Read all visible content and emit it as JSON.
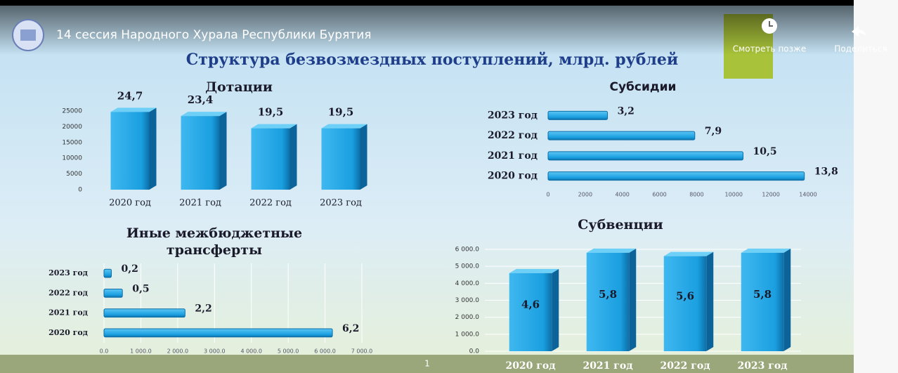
{
  "video": {
    "title": "14 сессия Народного Хурала Республики Бурятия",
    "watch_later": "Смотреть позже",
    "share": "Поделиться"
  },
  "slide": {
    "title": "Структура безвозмездных поступлений, млрд. рублей",
    "page": "1"
  },
  "chart_data": [
    {
      "type": "bar",
      "title": "Дотации",
      "categories": [
        "2020 год",
        "2021 год",
        "2022 год",
        "2023 год"
      ],
      "values": [
        24700,
        23400,
        19500,
        19500
      ],
      "value_labels": [
        "24,7",
        "23,4",
        "19,5",
        "19,5"
      ],
      "ylim": [
        0,
        25000
      ],
      "yticks": [
        0,
        5000,
        10000,
        15000,
        20000,
        25000
      ],
      "color": "#1ea5e6"
    },
    {
      "type": "barh",
      "title": "Субсидии",
      "categories": [
        "2023 год",
        "2022 год",
        "2021 год",
        "2020 год"
      ],
      "values": [
        3200,
        7900,
        10500,
        13800
      ],
      "value_labels": [
        "3,2",
        "7,9",
        "10,5",
        "13,8"
      ],
      "xlim": [
        0,
        14000
      ],
      "xticks": [
        0,
        2000,
        4000,
        6000,
        8000,
        10000,
        12000,
        14000
      ],
      "color": "#1ea5e6"
    },
    {
      "type": "barh",
      "title": "Иные межбюджетные трансферты",
      "categories": [
        "2023 год",
        "2022 год",
        "2021 год",
        "2020 год"
      ],
      "values": [
        200,
        500,
        2200,
        6200
      ],
      "value_labels": [
        "0,2",
        "0,5",
        "2,2",
        "6,2"
      ],
      "xlim": [
        0,
        7000
      ],
      "xticks": [
        {
          "value": 0,
          "label": "0.0"
        },
        {
          "value": 1000,
          "label": "1 000.0"
        },
        {
          "value": 2000,
          "label": "2 000.0"
        },
        {
          "value": 3000,
          "label": "3 000.0"
        },
        {
          "value": 4000,
          "label": "4 000.0"
        },
        {
          "value": 5000,
          "label": "5 000.0"
        },
        {
          "value": 6000,
          "label": "6 000.0"
        },
        {
          "value": 7000,
          "label": "7 000.0"
        }
      ],
      "grid": true,
      "color": "#1ea5e6"
    },
    {
      "type": "bar",
      "title": "Субвенции",
      "categories": [
        "2020 год",
        "2021 год",
        "2022 год",
        "2023 год"
      ],
      "values": [
        4600,
        5800,
        5600,
        5800
      ],
      "value_labels": [
        "4,6",
        "5,8",
        "5,6",
        "5,8"
      ],
      "ylim": [
        0,
        6000
      ],
      "yticks": [
        {
          "value": 0,
          "label": "0.0"
        },
        {
          "value": 1000,
          "label": "1 000.0"
        },
        {
          "value": 2000,
          "label": "2 000.0"
        },
        {
          "value": 3000,
          "label": "3 000.0"
        },
        {
          "value": 4000,
          "label": "4 000.0"
        },
        {
          "value": 5000,
          "label": "5 000.0"
        },
        {
          "value": 6000,
          "label": "6 000.0"
        }
      ],
      "grid": true,
      "color": "#1ea5e6"
    }
  ]
}
